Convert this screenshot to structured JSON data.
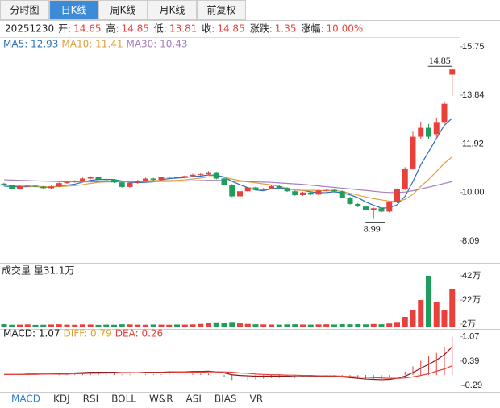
{
  "tabs": [
    "分时图",
    "日K线",
    "周K线",
    "月K线",
    "前复权"
  ],
  "active_tab": 1,
  "quote": {
    "date": "20251230",
    "fields": [
      {
        "label": "开:",
        "value": "14.65"
      },
      {
        "label": "高:",
        "value": "14.85"
      },
      {
        "label": "低:",
        "value": "13.81"
      },
      {
        "label": "收:",
        "value": "14.85"
      },
      {
        "label": "涨跌:",
        "value": "1.35"
      },
      {
        "label": "涨幅:",
        "value": "10.00%"
      }
    ]
  },
  "chart_data": [
    {
      "type": "candlestick",
      "legend": [
        {
          "text": "MA5: 12.93",
          "color": "#2c6fbb"
        },
        {
          "text": "MA10: 11.41",
          "color": "#e0a040"
        },
        {
          "text": "MA30: 10.43",
          "color": "#a77fbf"
        }
      ],
      "up_color": "#e8413c",
      "down_color": "#1e9e5a",
      "open": [
        10.35,
        10.28,
        10.15,
        10.25,
        10.27,
        10.23,
        10.17,
        10.24,
        10.37,
        10.42,
        10.45,
        10.55,
        10.6,
        10.52,
        10.5,
        10.4,
        10.22,
        10.38,
        10.47,
        10.55,
        10.5,
        10.6,
        10.62,
        10.58,
        10.65,
        10.7,
        10.72,
        10.8,
        10.55,
        10.3,
        9.85,
        10.05,
        10.2,
        10.1,
        10.15,
        10.25,
        10.18,
        10.05,
        9.9,
        10.0,
        9.92,
        10.08,
        10.1,
        10.05,
        9.8,
        9.55,
        9.45,
        9.32,
        9.38,
        9.25,
        9.62,
        10.13,
        10.95,
        12.2,
        12.55,
        12.3,
        12.78,
        14.65
      ],
      "high": [
        10.38,
        10.3,
        10.28,
        10.3,
        10.3,
        10.26,
        10.27,
        10.4,
        10.45,
        10.48,
        10.58,
        10.64,
        10.63,
        10.55,
        10.53,
        10.43,
        10.4,
        10.5,
        10.58,
        10.58,
        10.63,
        10.66,
        10.65,
        10.68,
        10.74,
        10.76,
        10.84,
        10.82,
        10.58,
        10.33,
        10.08,
        10.23,
        10.23,
        10.18,
        10.28,
        10.28,
        10.21,
        10.08,
        10.03,
        10.03,
        10.11,
        10.14,
        10.13,
        10.08,
        9.83,
        9.58,
        9.48,
        9.41,
        9.4,
        9.65,
        10.16,
        11.0,
        12.4,
        12.8,
        12.7,
        12.95,
        13.6,
        14.85
      ],
      "low": [
        10.25,
        10.12,
        10.12,
        10.22,
        10.2,
        10.14,
        10.14,
        10.21,
        10.34,
        10.39,
        10.42,
        10.52,
        10.49,
        10.47,
        10.37,
        10.19,
        10.19,
        10.35,
        10.44,
        10.47,
        10.47,
        10.57,
        10.55,
        10.55,
        10.62,
        10.67,
        10.69,
        10.52,
        10.27,
        9.82,
        9.82,
        10.02,
        10.07,
        10.07,
        10.12,
        10.15,
        10.02,
        9.87,
        9.87,
        9.89,
        9.89,
        10.05,
        10.02,
        9.77,
        9.52,
        9.42,
        9.29,
        8.99,
        9.22,
        9.22,
        9.58,
        10.1,
        10.9,
        12.1,
        12.1,
        12.2,
        12.7,
        13.81
      ],
      "close": [
        10.28,
        10.15,
        10.25,
        10.27,
        10.23,
        10.17,
        10.24,
        10.37,
        10.42,
        10.45,
        10.55,
        10.6,
        10.52,
        10.5,
        10.4,
        10.22,
        10.38,
        10.47,
        10.55,
        10.5,
        10.6,
        10.62,
        10.58,
        10.65,
        10.7,
        10.72,
        10.8,
        10.55,
        10.3,
        9.85,
        10.05,
        10.2,
        10.1,
        10.15,
        10.25,
        10.18,
        10.05,
        9.9,
        10.0,
        9.92,
        10.08,
        10.1,
        10.05,
        9.8,
        9.55,
        9.45,
        9.32,
        9.38,
        9.25,
        9.62,
        10.13,
        10.95,
        12.2,
        12.55,
        12.2,
        12.78,
        13.5,
        14.85
      ],
      "series": [
        {
          "color": "#2c6fbb",
          "values": [
            10.25,
            10.23,
            10.22,
            10.23,
            10.24,
            10.21,
            10.21,
            10.26,
            10.29,
            10.33,
            10.41,
            10.48,
            10.51,
            10.52,
            10.51,
            10.45,
            10.4,
            10.39,
            10.4,
            10.42,
            10.5,
            10.55,
            10.57,
            10.59,
            10.63,
            10.65,
            10.69,
            10.68,
            10.61,
            10.44,
            10.31,
            10.19,
            10.1,
            10.07,
            10.15,
            10.18,
            10.15,
            10.1,
            10.08,
            10.03,
            9.99,
            10.0,
            10.03,
            9.99,
            9.91,
            9.8,
            9.63,
            9.5,
            9.39,
            9.4,
            9.52,
            9.85,
            10.43,
            11.09,
            11.61,
            12.14,
            12.65,
            12.93
          ]
        },
        {
          "color": "#e0a040",
          "values": [
            10.3,
            10.28,
            10.26,
            10.25,
            10.24,
            10.23,
            10.22,
            10.23,
            10.25,
            10.27,
            10.31,
            10.36,
            10.4,
            10.42,
            10.42,
            10.43,
            10.44,
            10.45,
            10.46,
            10.47,
            10.47,
            10.47,
            10.48,
            10.5,
            10.53,
            10.57,
            10.62,
            10.63,
            10.6,
            10.53,
            10.47,
            10.42,
            10.38,
            10.34,
            10.3,
            10.24,
            10.17,
            10.1,
            10.08,
            10.09,
            10.08,
            10.07,
            10.09,
            10.04,
            9.97,
            9.9,
            9.82,
            9.76,
            9.71,
            9.66,
            9.66,
            9.73,
            9.93,
            10.24,
            10.51,
            10.83,
            11.15,
            11.41
          ]
        },
        {
          "color": "#a77fbf",
          "values": [
            10.5,
            10.49,
            10.48,
            10.47,
            10.46,
            10.45,
            10.44,
            10.43,
            10.42,
            10.42,
            10.42,
            10.42,
            10.42,
            10.42,
            10.42,
            10.42,
            10.42,
            10.42,
            10.43,
            10.43,
            10.44,
            10.44,
            10.45,
            10.45,
            10.46,
            10.47,
            10.48,
            10.48,
            10.47,
            10.45,
            10.44,
            10.43,
            10.42,
            10.41,
            10.4,
            10.38,
            10.36,
            10.34,
            10.32,
            10.29,
            10.26,
            10.23,
            10.2,
            10.17,
            10.14,
            10.11,
            10.08,
            10.05,
            10.02,
            10.0,
            10.0,
            10.02,
            10.07,
            10.14,
            10.21,
            10.28,
            10.36,
            10.43
          ]
        }
      ],
      "ylim": [
        7.26,
        16.16
      ],
      "yticks": [
        15.75,
        13.84,
        11.92,
        {
          "value": 10,
          "label": "10.00"
        },
        8.09
      ]
    },
    {
      "type": "volume",
      "title": "成交量 量31.1万",
      "values": [
        2,
        1.5,
        1.6,
        1.8,
        1.4,
        1.5,
        1.7,
        1.9,
        1.6,
        1.5,
        1.8,
        1.7,
        1.4,
        1.6,
        1.5,
        1.9,
        1.8,
        1.6,
        1.5,
        1.7,
        1.6,
        1.5,
        1.7,
        1.6,
        1.8,
        2.2,
        3,
        3.5,
        2.8,
        3.8,
        2.6,
        2.2,
        1.9,
        1.8,
        1.7,
        1.6,
        1.8,
        1.9,
        1.7,
        1.6,
        1.8,
        1.9,
        1.7,
        2,
        1.9,
        2,
        1.8,
        2.1,
        1.9,
        2.5,
        3.8,
        8,
        14,
        22,
        42,
        20,
        14,
        31.1
      ],
      "ylim": [
        0,
        46
      ],
      "yticks": [
        {
          "value": 42,
          "label": "42万"
        },
        {
          "value": 22,
          "label": "22万"
        },
        {
          "value": 2,
          "label": "2万"
        }
      ]
    },
    {
      "type": "macd",
      "legend": [
        {
          "text": "MACD: 1.07",
          "color": "#222222"
        },
        {
          "text": "DIFF: 0.79",
          "color": "#e0a030"
        },
        {
          "text": "DEA: 0.26",
          "color": "#e8413c"
        }
      ],
      "values": [
        0,
        0,
        0,
        0.02,
        0.02,
        0,
        0,
        0.02,
        0.04,
        0.04,
        0.06,
        0.06,
        0.06,
        0.04,
        0.04,
        0.02,
        0.02,
        0,
        0.02,
        0.02,
        0.02,
        0.04,
        0.02,
        0.02,
        0.04,
        0.04,
        0.04,
        0,
        -0.06,
        -0.14,
        -0.14,
        -0.14,
        -0.12,
        -0.1,
        -0.08,
        -0.08,
        -0.06,
        -0.08,
        -0.06,
        -0.06,
        -0.04,
        -0.04,
        -0.04,
        -0.04,
        -0.06,
        -0.08,
        -0.1,
        -0.1,
        -0.1,
        -0.06,
        0,
        0.1,
        0.24,
        0.4,
        0.52,
        0.62,
        0.8,
        1.07
      ],
      "series": [
        {
          "color": "#8b1a1a",
          "values": [
            0.02,
            0.02,
            0.02,
            0.03,
            0.03,
            0.03,
            0.03,
            0.04,
            0.05,
            0.06,
            0.07,
            0.08,
            0.08,
            0.08,
            0.08,
            0.07,
            0.07,
            0.07,
            0.08,
            0.08,
            0.08,
            0.09,
            0.09,
            0.09,
            0.1,
            0.1,
            0.11,
            0.09,
            0.06,
            0.01,
            -0.01,
            -0.02,
            -0.03,
            -0.03,
            -0.03,
            -0.03,
            -0.03,
            -0.04,
            -0.04,
            -0.04,
            -0.04,
            -0.04,
            -0.04,
            -0.05,
            -0.07,
            -0.09,
            -0.11,
            -0.12,
            -0.13,
            -0.12,
            -0.09,
            -0.03,
            0.07,
            0.19,
            0.3,
            0.42,
            0.57,
            0.79
          ]
        },
        {
          "color": "#e8413c",
          "values": [
            0.02,
            0.02,
            0.02,
            0.02,
            0.02,
            0.03,
            0.03,
            0.03,
            0.03,
            0.04,
            0.04,
            0.05,
            0.05,
            0.06,
            0.06,
            0.06,
            0.06,
            0.07,
            0.07,
            0.07,
            0.07,
            0.07,
            0.08,
            0.08,
            0.08,
            0.08,
            0.09,
            0.09,
            0.09,
            0.08,
            0.06,
            0.05,
            0.03,
            0.02,
            0.01,
            0.01,
            0.0,
            0.0,
            -0.01,
            -0.01,
            -0.02,
            -0.02,
            -0.02,
            -0.03,
            -0.04,
            -0.05,
            -0.06,
            -0.07,
            -0.08,
            -0.09,
            -0.09,
            -0.08,
            -0.05,
            -0.01,
            0.04,
            0.11,
            0.17,
            0.26
          ]
        }
      ],
      "ylim": [
        -0.47,
        1.2
      ],
      "yticks": [
        1.07,
        0.39,
        -0.29
      ]
    }
  ],
  "indicator_tabs": [
    "MACD",
    "KDJ",
    "RSI",
    "BOLL",
    "W&R",
    "ASI",
    "BIAS",
    "VR"
  ],
  "active_indicator": 0
}
